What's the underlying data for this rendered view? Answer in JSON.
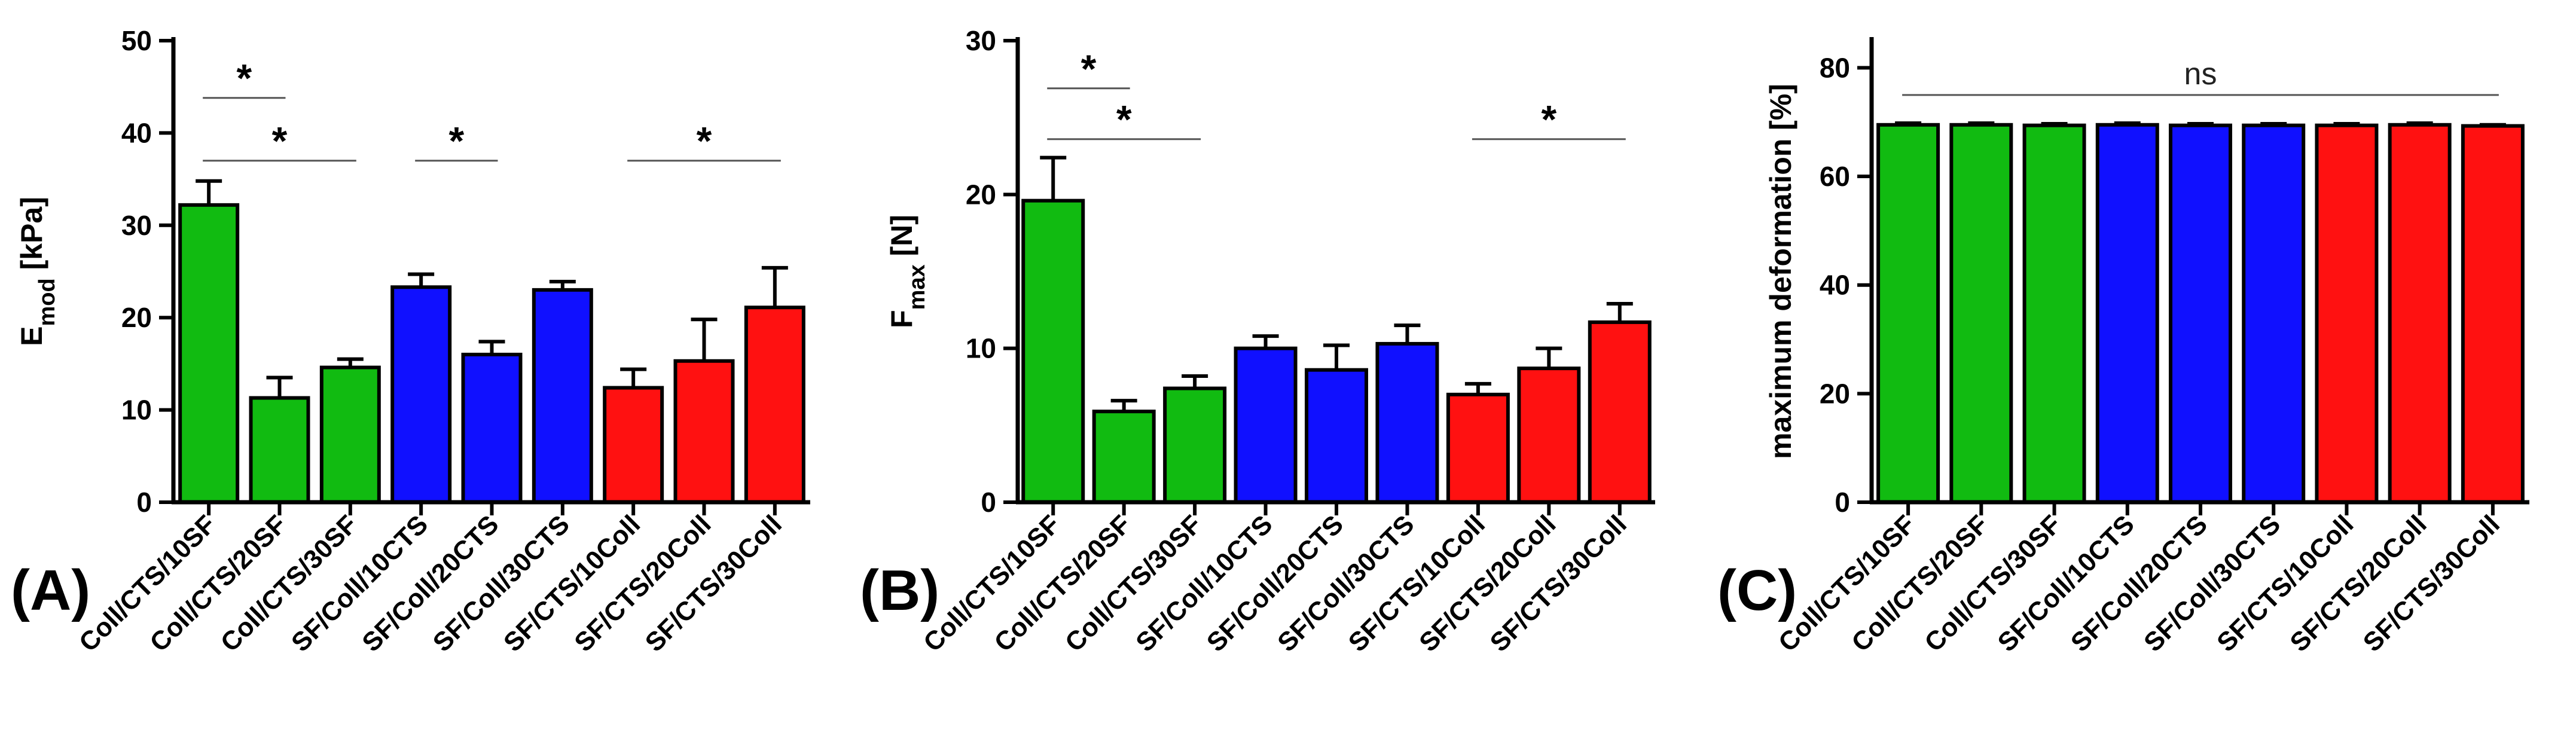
{
  "chart_data": [
    {
      "type": "bar",
      "panel_label": "(A)",
      "ylabel_main": "E",
      "ylabel_sub": "mod",
      "ylabel_rest": " [kPa]",
      "ylim": [
        0,
        50
      ],
      "yticks": [
        "0",
        "10",
        "20",
        "30",
        "40",
        "50"
      ],
      "categories": [
        "Coll/CTS/10SF",
        "Coll/CTS/20SF",
        "Coll/CTS/30SF",
        "SF/Coll/10CTS",
        "SF/Coll/20CTS",
        "SF/Coll/30CTS",
        "SF/CTS/10Coll",
        "SF/CTS/20Coll",
        "SF/CTS/30Coll"
      ],
      "values": [
        32.2,
        11.3,
        14.6,
        23.3,
        16.0,
        23.0,
        12.4,
        15.3,
        21.1
      ],
      "errors": [
        2.6,
        2.2,
        0.9,
        1.4,
        1.4,
        0.9,
        2.0,
        4.5,
        4.3
      ],
      "colors": [
        "#11bb11",
        "#11bb11",
        "#11bb11",
        "#1010ff",
        "#1010ff",
        "#1010ff",
        "#ff1111",
        "#ff1111",
        "#ff1111"
      ],
      "significance": [
        {
          "from": 0,
          "to": 1,
          "y": 43.8,
          "label": "*"
        },
        {
          "from": 0,
          "to": 2,
          "y": 37.0,
          "label": "*"
        },
        {
          "from": 3,
          "to": 4,
          "y": 37.0,
          "label": "*"
        },
        {
          "from": 6,
          "to": 8,
          "y": 37.0,
          "label": "*"
        }
      ]
    },
    {
      "type": "bar",
      "panel_label": "(B)",
      "ylabel_main": "F",
      "ylabel_sub": "max",
      "ylabel_rest": " [N]",
      "ylim": [
        0,
        30
      ],
      "yticks": [
        "0",
        "10",
        "20",
        "30"
      ],
      "categories": [
        "Coll/CTS/10SF",
        "Coll/CTS/20SF",
        "Coll/CTS/30SF",
        "SF/Coll/10CTS",
        "SF/Coll/20CTS",
        "SF/Coll/30CTS",
        "SF/CTS/10Coll",
        "SF/CTS/20Coll",
        "SF/CTS/30Coll"
      ],
      "values": [
        19.6,
        5.9,
        7.4,
        10.0,
        8.6,
        10.3,
        7.0,
        8.7,
        11.7
      ],
      "errors": [
        2.8,
        0.7,
        0.8,
        0.8,
        1.6,
        1.2,
        0.7,
        1.3,
        1.2
      ],
      "colors": [
        "#11bb11",
        "#11bb11",
        "#11bb11",
        "#1010ff",
        "#1010ff",
        "#1010ff",
        "#ff1111",
        "#ff1111",
        "#ff1111"
      ],
      "significance": [
        {
          "from": 0,
          "to": 1,
          "y": 26.9,
          "label": "*"
        },
        {
          "from": 0,
          "to": 2,
          "y": 23.6,
          "label": "*"
        },
        {
          "from": 6,
          "to": 8,
          "y": 23.6,
          "label": "*"
        }
      ]
    },
    {
      "type": "bar",
      "panel_label": "(C)",
      "ylabel_main": "maximum deformation [%]",
      "ylabel_sub": "",
      "ylabel_rest": "",
      "ylim": [
        0,
        85
      ],
      "yticks": [
        "0",
        "20",
        "40",
        "60",
        "80"
      ],
      "categories": [
        "Coll/CTS/10SF",
        "Coll/CTS/20SF",
        "Coll/CTS/30SF",
        "SF/Coll/10CTS",
        "SF/Coll/20CTS",
        "SF/Coll/30CTS",
        "SF/CTS/10Coll",
        "SF/CTS/20Coll",
        "SF/CTS/30Coll"
      ],
      "values": [
        69.5,
        69.5,
        69.4,
        69.5,
        69.4,
        69.4,
        69.4,
        69.5,
        69.3
      ],
      "errors": [
        0.3,
        0.3,
        0.3,
        0.3,
        0.3,
        0.3,
        0.3,
        0.3,
        0.2
      ],
      "colors": [
        "#11bb11",
        "#11bb11",
        "#11bb11",
        "#1010ff",
        "#1010ff",
        "#1010ff",
        "#ff1111",
        "#ff1111",
        "#ff1111"
      ],
      "significance": [
        {
          "from": 0,
          "to": 8,
          "y": 75.0,
          "label": "ns"
        }
      ]
    }
  ]
}
